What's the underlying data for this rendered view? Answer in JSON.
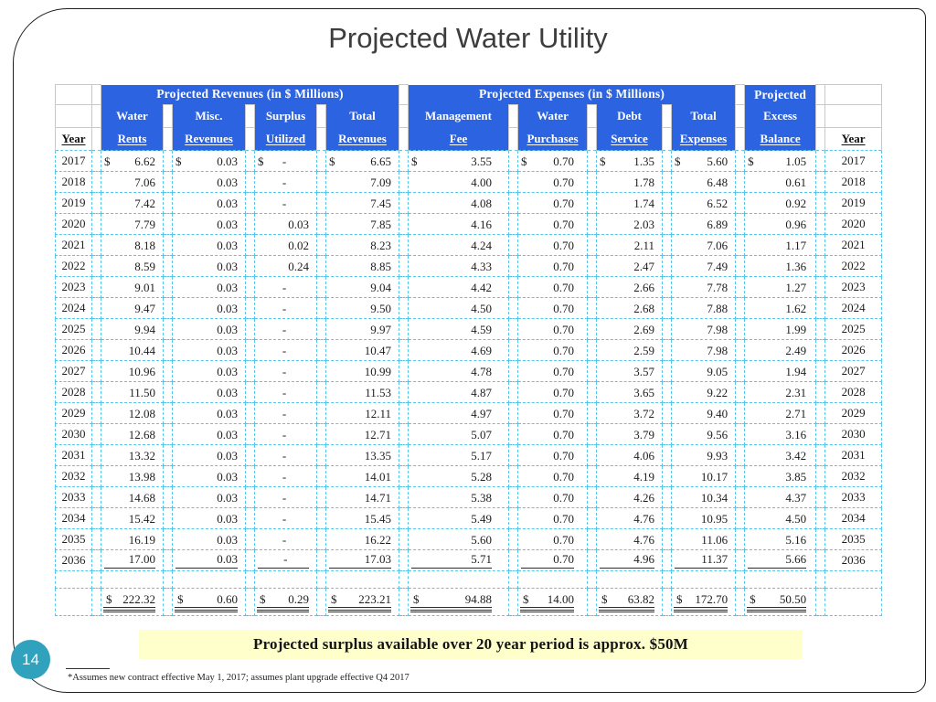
{
  "slide": {
    "title": "Projected Water Utility",
    "page_number": "14",
    "banner": "Projected surplus available over 20 year period is approx. $50M",
    "footnote": "*Assumes new contract effective May 1, 2017; assumes plant upgrade effective Q4 2017"
  },
  "colors": {
    "header_blue": "#2c63e1",
    "grid_cyan": "#55c7ec",
    "banner_yellow": "#ffffcc",
    "badge_teal": "#30a2bd"
  },
  "table": {
    "group_headers": {
      "revenues": "Projected Revenues (in $ Millions)",
      "expenses": "Projected Expenses (in $ Millions)",
      "excess": "Projected"
    },
    "column_headers": {
      "year": "Year",
      "cols": [
        {
          "line1": "Water",
          "line2": "Rents"
        },
        {
          "line1": "Misc.",
          "line2": "Revenues"
        },
        {
          "line1": "Surplus",
          "line2": "Utilized"
        },
        {
          "line1": "Total",
          "line2": "Revenues"
        },
        {
          "line1": "Management",
          "line2": "Fee"
        },
        {
          "line1": "Water",
          "line2": "Purchases"
        },
        {
          "line1": "Debt",
          "line2": "Service"
        },
        {
          "line1": "Total",
          "line2": "Expenses"
        },
        {
          "line1": "Excess",
          "line2": "Balance"
        }
      ]
    },
    "rows": [
      {
        "year": "2017",
        "dollar": true,
        "values": [
          "6.62",
          "0.03",
          "-",
          "6.65",
          "3.55",
          "0.70",
          "1.35",
          "5.60",
          "1.05"
        ]
      },
      {
        "year": "2018",
        "dollar": false,
        "values": [
          "7.06",
          "0.03",
          "-",
          "7.09",
          "4.00",
          "0.70",
          "1.78",
          "6.48",
          "0.61"
        ]
      },
      {
        "year": "2019",
        "dollar": false,
        "values": [
          "7.42",
          "0.03",
          "-",
          "7.45",
          "4.08",
          "0.70",
          "1.74",
          "6.52",
          "0.92"
        ]
      },
      {
        "year": "2020",
        "dollar": false,
        "values": [
          "7.79",
          "0.03",
          "0.03",
          "7.85",
          "4.16",
          "0.70",
          "2.03",
          "6.89",
          "0.96"
        ]
      },
      {
        "year": "2021",
        "dollar": false,
        "values": [
          "8.18",
          "0.03",
          "0.02",
          "8.23",
          "4.24",
          "0.70",
          "2.11",
          "7.06",
          "1.17"
        ]
      },
      {
        "year": "2022",
        "dollar": false,
        "values": [
          "8.59",
          "0.03",
          "0.24",
          "8.85",
          "4.33",
          "0.70",
          "2.47",
          "7.49",
          "1.36"
        ]
      },
      {
        "year": "2023",
        "dollar": false,
        "values": [
          "9.01",
          "0.03",
          "-",
          "9.04",
          "4.42",
          "0.70",
          "2.66",
          "7.78",
          "1.27"
        ]
      },
      {
        "year": "2024",
        "dollar": false,
        "values": [
          "9.47",
          "0.03",
          "-",
          "9.50",
          "4.50",
          "0.70",
          "2.68",
          "7.88",
          "1.62"
        ]
      },
      {
        "year": "2025",
        "dollar": false,
        "values": [
          "9.94",
          "0.03",
          "-",
          "9.97",
          "4.59",
          "0.70",
          "2.69",
          "7.98",
          "1.99"
        ]
      },
      {
        "year": "2026",
        "dollar": false,
        "values": [
          "10.44",
          "0.03",
          "-",
          "10.47",
          "4.69",
          "0.70",
          "2.59",
          "7.98",
          "2.49"
        ]
      },
      {
        "year": "2027",
        "dollar": false,
        "values": [
          "10.96",
          "0.03",
          "-",
          "10.99",
          "4.78",
          "0.70",
          "3.57",
          "9.05",
          "1.94"
        ]
      },
      {
        "year": "2028",
        "dollar": false,
        "values": [
          "11.50",
          "0.03",
          "-",
          "11.53",
          "4.87",
          "0.70",
          "3.65",
          "9.22",
          "2.31"
        ]
      },
      {
        "year": "2029",
        "dollar": false,
        "values": [
          "12.08",
          "0.03",
          "-",
          "12.11",
          "4.97",
          "0.70",
          "3.72",
          "9.40",
          "2.71"
        ]
      },
      {
        "year": "2030",
        "dollar": false,
        "values": [
          "12.68",
          "0.03",
          "-",
          "12.71",
          "5.07",
          "0.70",
          "3.79",
          "9.56",
          "3.16"
        ]
      },
      {
        "year": "2031",
        "dollar": false,
        "values": [
          "13.32",
          "0.03",
          "-",
          "13.35",
          "5.17",
          "0.70",
          "4.06",
          "9.93",
          "3.42"
        ]
      },
      {
        "year": "2032",
        "dollar": false,
        "values": [
          "13.98",
          "0.03",
          "-",
          "14.01",
          "5.28",
          "0.70",
          "4.19",
          "10.17",
          "3.85"
        ]
      },
      {
        "year": "2033",
        "dollar": false,
        "values": [
          "14.68",
          "0.03",
          "-",
          "14.71",
          "5.38",
          "0.70",
          "4.26",
          "10.34",
          "4.37"
        ]
      },
      {
        "year": "2034",
        "dollar": false,
        "values": [
          "15.42",
          "0.03",
          "-",
          "15.45",
          "5.49",
          "0.70",
          "4.76",
          "10.95",
          "4.50"
        ]
      },
      {
        "year": "2035",
        "dollar": false,
        "values": [
          "16.19",
          "0.03",
          "-",
          "16.22",
          "5.60",
          "0.70",
          "4.76",
          "11.06",
          "5.16"
        ]
      },
      {
        "year": "2036",
        "dollar": false,
        "values": [
          "17.00",
          "0.03",
          "-",
          "17.03",
          "5.71",
          "0.70",
          "4.96",
          "11.37",
          "5.66"
        ]
      }
    ],
    "totals": {
      "dollar": true,
      "values": [
        "222.32",
        "0.60",
        "0.29",
        "223.21",
        "94.88",
        "14.00",
        "63.82",
        "172.70",
        "50.50"
      ]
    }
  }
}
